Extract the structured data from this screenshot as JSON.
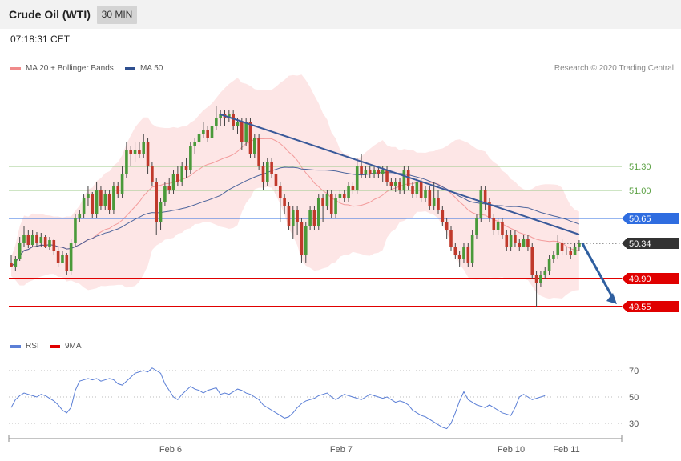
{
  "header": {
    "title": "Crude Oil (WTI)",
    "timeframe": "30 MIN"
  },
  "timestamp": "07:18:31 CET",
  "legend_main": [
    {
      "label": "MA 20 + Bollinger Bands",
      "color": "#f08a8a"
    },
    {
      "label": "MA 50",
      "color": "#2f4f8f"
    }
  ],
  "legend_rsi": [
    {
      "label": "RSI",
      "color": "#5b7fd6"
    },
    {
      "label": "9MA",
      "color": "#e00000"
    }
  ],
  "credit": "Research © 2020 Trading Central",
  "colors": {
    "up": "#4a9a3a",
    "down": "#c0392b",
    "band": "#fde3e3",
    "current_box": "#333333"
  },
  "chart_data": {
    "type": "candlestick",
    "instrument": "Crude Oil (WTI)",
    "timeframe": "30 MIN",
    "x_ticks": [
      "Feb 6",
      "Feb 7",
      "Feb 10",
      "Feb 11"
    ],
    "y_range": [
      49.3,
      51.9
    ],
    "price_levels": [
      {
        "value": 51.3,
        "label": "51.30",
        "style": "resistance-light",
        "color": "#9ccb8a"
      },
      {
        "value": 51.0,
        "label": "51.00",
        "style": "resistance-light",
        "color": "#9ccb8a"
      },
      {
        "value": 50.65,
        "label": "50.65",
        "style": "pivot",
        "color": "#2f6de0"
      },
      {
        "value": 50.34,
        "label": "50.34",
        "style": "current",
        "color": "#333333"
      },
      {
        "value": 49.9,
        "label": "49.90",
        "style": "support",
        "color": "#e00000"
      },
      {
        "value": 49.55,
        "label": "49.55",
        "style": "support",
        "color": "#e00000"
      }
    ],
    "candles": [
      [
        50.1,
        50.05,
        50.2,
        50.05
      ],
      [
        50.05,
        50.15,
        50.18,
        50.0
      ],
      [
        50.15,
        50.35,
        50.42,
        50.12
      ],
      [
        50.35,
        50.45,
        50.55,
        50.3
      ],
      [
        50.45,
        50.32,
        50.5,
        50.28
      ],
      [
        50.32,
        50.45,
        50.5,
        50.3
      ],
      [
        50.45,
        50.35,
        50.48,
        50.3
      ],
      [
        50.35,
        50.42,
        50.47,
        50.3
      ],
      [
        50.42,
        50.3,
        50.45,
        50.28
      ],
      [
        50.3,
        50.38,
        50.42,
        50.26
      ],
      [
        50.38,
        50.25,
        50.4,
        50.2
      ],
      [
        50.25,
        50.1,
        50.3,
        50.05
      ],
      [
        50.1,
        50.2,
        50.25,
        50.1
      ],
      [
        50.2,
        50.0,
        50.22,
        49.95
      ],
      [
        50.0,
        50.35,
        50.4,
        49.95
      ],
      [
        50.35,
        50.65,
        50.7,
        50.3
      ],
      [
        50.65,
        50.7,
        50.75,
        50.6
      ],
      [
        50.7,
        50.9,
        50.95,
        50.65
      ],
      [
        50.9,
        50.95,
        51.05,
        50.8
      ],
      [
        50.95,
        50.7,
        50.98,
        50.65
      ],
      [
        50.7,
        51.0,
        51.1,
        50.65
      ],
      [
        51.0,
        50.8,
        51.05,
        50.75
      ],
      [
        50.8,
        50.95,
        51.0,
        50.75
      ],
      [
        50.95,
        50.75,
        51.0,
        50.7
      ],
      [
        50.75,
        51.05,
        51.1,
        50.7
      ],
      [
        51.05,
        50.95,
        51.1,
        50.9
      ],
      [
        50.95,
        51.2,
        51.3,
        50.9
      ],
      [
        51.2,
        51.5,
        51.6,
        51.15
      ],
      [
        51.5,
        51.45,
        51.55,
        51.3
      ],
      [
        51.45,
        51.5,
        51.6,
        51.35
      ],
      [
        51.5,
        51.45,
        51.6,
        51.4
      ],
      [
        51.45,
        51.6,
        51.7,
        51.4
      ],
      [
        51.6,
        51.3,
        51.65,
        51.2
      ],
      [
        51.3,
        51.1,
        51.35,
        51.05
      ],
      [
        51.1,
        50.6,
        51.15,
        50.45
      ],
      [
        50.6,
        50.85,
        50.9,
        50.5
      ],
      [
        50.85,
        51.05,
        51.1,
        50.8
      ],
      [
        51.05,
        51.0,
        51.15,
        50.95
      ],
      [
        51.0,
        51.2,
        51.25,
        50.95
      ],
      [
        51.2,
        51.1,
        51.3,
        51.05
      ],
      [
        51.1,
        51.3,
        51.35,
        51.05
      ],
      [
        51.3,
        51.25,
        51.4,
        51.15
      ],
      [
        51.25,
        51.55,
        51.6,
        51.2
      ],
      [
        51.55,
        51.6,
        51.65,
        51.45
      ],
      [
        51.6,
        51.7,
        51.75,
        51.55
      ],
      [
        51.7,
        51.75,
        51.85,
        51.65
      ],
      [
        51.75,
        51.65,
        51.8,
        51.6
      ],
      [
        51.65,
        51.8,
        51.85,
        51.6
      ],
      [
        51.8,
        51.9,
        52.05,
        51.75
      ],
      [
        51.9,
        51.95,
        52.0,
        51.8
      ],
      [
        51.95,
        51.9,
        52.0,
        51.8
      ],
      [
        51.9,
        51.95,
        52.0,
        51.85
      ],
      [
        51.95,
        51.8,
        52.0,
        51.75
      ],
      [
        51.8,
        51.85,
        51.9,
        51.7
      ],
      [
        51.85,
        51.6,
        51.9,
        51.5
      ],
      [
        51.6,
        51.85,
        51.9,
        51.55
      ],
      [
        51.85,
        51.45,
        51.9,
        51.4
      ],
      [
        51.45,
        51.65,
        51.7,
        51.4
      ],
      [
        51.65,
        51.3,
        51.7,
        51.25
      ],
      [
        51.3,
        51.1,
        51.35,
        51.0
      ],
      [
        51.1,
        51.35,
        51.4,
        51.05
      ],
      [
        51.35,
        51.2,
        51.4,
        51.15
      ],
      [
        51.2,
        51.05,
        51.25,
        50.95
      ],
      [
        51.05,
        50.9,
        51.1,
        50.6
      ],
      [
        50.9,
        50.8,
        50.95,
        50.7
      ],
      [
        50.8,
        50.55,
        50.85,
        50.5
      ],
      [
        50.55,
        50.75,
        50.8,
        50.4
      ],
      [
        50.75,
        50.6,
        50.8,
        50.45
      ],
      [
        50.6,
        50.2,
        50.65,
        50.1
      ],
      [
        50.2,
        50.55,
        50.6,
        50.1
      ],
      [
        50.55,
        50.75,
        50.8,
        50.5
      ],
      [
        50.75,
        50.55,
        50.8,
        50.5
      ],
      [
        50.55,
        50.9,
        50.95,
        50.5
      ],
      [
        50.9,
        50.8,
        50.95,
        50.6
      ],
      [
        50.8,
        50.95,
        51.0,
        50.75
      ],
      [
        50.95,
        50.7,
        51.0,
        50.65
      ],
      [
        50.7,
        50.9,
        50.95,
        50.65
      ],
      [
        50.9,
        50.95,
        51.0,
        50.85
      ],
      [
        50.95,
        50.9,
        51.0,
        50.85
      ],
      [
        50.9,
        51.05,
        51.1,
        50.85
      ],
      [
        51.05,
        51.0,
        51.1,
        50.95
      ],
      [
        51.0,
        51.3,
        51.4,
        50.95
      ],
      [
        51.3,
        51.2,
        51.45,
        51.15
      ],
      [
        51.2,
        51.25,
        51.3,
        51.15
      ],
      [
        51.25,
        51.2,
        51.3,
        51.15
      ],
      [
        51.2,
        51.25,
        51.3,
        51.15
      ],
      [
        51.25,
        51.2,
        51.3,
        51.15
      ],
      [
        51.2,
        51.25,
        51.3,
        51.1
      ],
      [
        51.25,
        51.1,
        51.3,
        51.05
      ],
      [
        51.1,
        51.05,
        51.15,
        51.0
      ],
      [
        51.05,
        51.1,
        51.15,
        50.98
      ],
      [
        51.1,
        51.0,
        51.15,
        50.95
      ],
      [
        51.0,
        51.25,
        51.3,
        50.95
      ],
      [
        51.25,
        51.05,
        51.3,
        51.0
      ],
      [
        51.05,
        50.95,
        51.1,
        50.9
      ],
      [
        50.95,
        51.1,
        51.15,
        50.9
      ],
      [
        51.1,
        50.9,
        51.15,
        50.85
      ],
      [
        50.9,
        51.0,
        51.05,
        50.85
      ],
      [
        51.0,
        50.8,
        51.05,
        50.75
      ],
      [
        50.8,
        50.9,
        51.1,
        50.75
      ],
      [
        50.9,
        50.75,
        51.0,
        50.7
      ],
      [
        50.75,
        50.6,
        50.8,
        50.55
      ],
      [
        50.6,
        50.5,
        50.65,
        50.4
      ],
      [
        50.5,
        50.3,
        50.55,
        50.25
      ],
      [
        50.3,
        50.2,
        50.35,
        50.15
      ],
      [
        50.2,
        50.15,
        50.25,
        50.05
      ],
      [
        50.15,
        50.3,
        50.35,
        50.1
      ],
      [
        50.3,
        50.1,
        50.35,
        50.05
      ],
      [
        50.1,
        50.45,
        50.5,
        50.05
      ],
      [
        50.45,
        50.65,
        50.7,
        50.4
      ],
      [
        50.65,
        51.0,
        51.05,
        50.6
      ],
      [
        51.0,
        50.85,
        51.05,
        50.75
      ],
      [
        50.85,
        50.65,
        50.9,
        50.6
      ],
      [
        50.65,
        50.5,
        50.7,
        50.45
      ],
      [
        50.5,
        50.6,
        50.65,
        50.45
      ],
      [
        50.6,
        50.45,
        50.65,
        50.4
      ],
      [
        50.45,
        50.3,
        50.5,
        50.25
      ],
      [
        50.3,
        50.45,
        50.5,
        50.25
      ],
      [
        50.45,
        50.35,
        50.5,
        50.3
      ],
      [
        50.35,
        50.3,
        50.4,
        50.25
      ],
      [
        50.3,
        50.4,
        50.45,
        50.3
      ],
      [
        50.4,
        50.3,
        50.45,
        50.25
      ],
      [
        50.3,
        49.95,
        50.35,
        49.9
      ],
      [
        49.95,
        49.85,
        50.0,
        49.55
      ],
      [
        49.85,
        49.95,
        50.0,
        49.8
      ],
      [
        49.95,
        50.0,
        50.05,
        49.9
      ],
      [
        50.0,
        50.15,
        50.2,
        49.95
      ],
      [
        50.15,
        50.2,
        50.25,
        50.1
      ],
      [
        50.2,
        50.35,
        50.45,
        50.15
      ],
      [
        50.35,
        50.25,
        50.4,
        50.2
      ],
      [
        50.25,
        50.25,
        50.3,
        50.2
      ],
      [
        50.25,
        50.2,
        50.3,
        50.15
      ],
      [
        50.2,
        50.3,
        50.35,
        50.2
      ],
      [
        50.3,
        50.34,
        50.38,
        50.25
      ]
    ],
    "rsi_pane": {
      "series": [
        {
          "name": "RSI",
          "values": [
            42,
            48,
            51,
            53,
            52,
            51,
            50,
            52,
            51,
            49,
            47,
            44,
            40,
            38,
            42,
            55,
            62,
            63,
            64,
            63,
            64,
            62,
            63,
            64,
            63,
            60,
            59,
            62,
            65,
            68,
            69,
            70,
            69,
            72,
            70,
            68,
            60,
            55,
            50,
            48,
            52,
            55,
            58,
            56,
            55,
            53,
            55,
            56,
            57,
            52,
            53,
            52,
            54,
            56,
            55,
            53,
            52,
            50,
            48,
            44,
            42,
            40,
            38,
            36,
            34,
            35,
            38,
            42,
            45,
            47,
            48,
            49,
            51,
            52,
            53,
            50,
            48,
            50,
            52,
            51,
            50,
            49,
            48,
            50,
            52,
            51,
            50,
            49,
            50,
            48,
            46,
            47,
            46,
            44,
            40,
            38,
            36,
            35,
            33,
            31,
            29,
            27,
            26,
            30,
            38,
            47,
            54,
            48,
            46,
            44,
            43,
            42,
            44,
            42,
            40,
            38,
            37,
            36,
            42,
            50,
            52,
            50,
            48,
            49,
            50,
            51
          ]
        },
        {
          "name": "9MA",
          "values": []
        }
      ],
      "y_ticks": [
        70,
        50,
        30
      ],
      "y_range": [
        20,
        80
      ]
    },
    "forecast_arrow": {
      "from_value": 50.34,
      "to_value": 49.55,
      "direction": "down"
    }
  }
}
